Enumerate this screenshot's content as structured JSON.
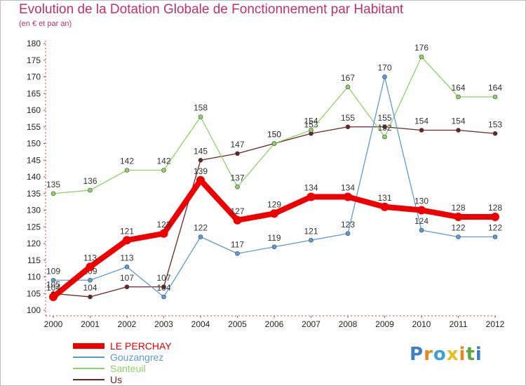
{
  "header": {
    "title": "Evolution de la Dotation Globale de Fonctionnement par Habitant",
    "subtitle": "(en € et par an)"
  },
  "logo": {
    "letters": [
      "P",
      "r",
      "o",
      "x",
      "i",
      "t",
      "i"
    ],
    "colors": [
      "#3c7fc8",
      "#e8871a",
      "#3aa0d8",
      "#e6c020",
      "#e8871a",
      "#5aa83a",
      "#3c7fc8"
    ]
  },
  "chart_data": {
    "type": "line",
    "title": "Evolution de la Dotation Globale de Fonctionnement par Habitant",
    "subtitle": "(en € et par an)",
    "xlabel": "",
    "ylabel": "",
    "x": [
      "2000",
      "2001",
      "2002",
      "2003",
      "2004",
      "2005",
      "2006",
      "2007",
      "2008",
      "2009",
      "2010",
      "2011",
      "2012"
    ],
    "ylim": [
      100,
      180
    ],
    "yticks": [
      100,
      105,
      110,
      115,
      120,
      125,
      130,
      135,
      140,
      145,
      150,
      155,
      160,
      165,
      170,
      175,
      180
    ],
    "grid": false,
    "legend_position": "bottom-left",
    "series": [
      {
        "name": "LE PERCHAY",
        "color": "#ee0000",
        "values": [
          104,
          113,
          121,
          123,
          139,
          127,
          129,
          134,
          134,
          131,
          130,
          128,
          128
        ]
      },
      {
        "name": "Gouzangrez",
        "color": "#5b9bd5",
        "values": [
          109,
          109,
          113,
          104,
          122,
          117,
          119,
          121,
          123,
          170,
          124,
          122,
          122
        ]
      },
      {
        "name": "Santeuil",
        "color": "#8ed166",
        "values": [
          135,
          136,
          142,
          142,
          158,
          137,
          150,
          154,
          167,
          152,
          176,
          164,
          164
        ]
      },
      {
        "name": "Us",
        "color": "#6b2424",
        "values": [
          105,
          104,
          107,
          107,
          145,
          147,
          150,
          153,
          155,
          155,
          154,
          154,
          153
        ]
      }
    ]
  }
}
